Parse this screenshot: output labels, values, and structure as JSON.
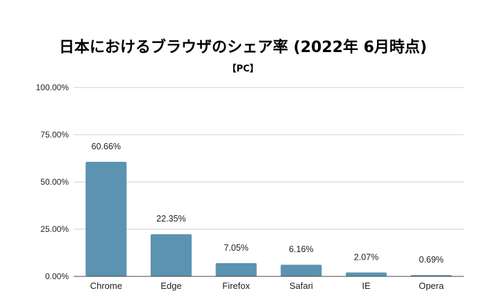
{
  "chart_data": {
    "type": "bar",
    "title": "日本におけるブラウザのシェア率 (2022年 6月時点)",
    "subtitle": "【PC】",
    "categories": [
      "Chrome",
      "Edge",
      "Firefox",
      "Safari",
      "IE",
      "Opera"
    ],
    "values": [
      60.66,
      22.35,
      7.05,
      6.16,
      2.07,
      0.69
    ],
    "data_labels": [
      "60.66%",
      "22.35%",
      "7.05%",
      "6.16%",
      "2.07%",
      "0.69%"
    ],
    "ylim": [
      0,
      100
    ],
    "yticks": [
      0,
      25,
      50,
      75,
      100
    ],
    "ytick_labels": [
      "0.00%",
      "25.00%",
      "50.00%",
      "75.00%",
      "100.00%"
    ],
    "xlabel": "",
    "ylabel": "",
    "grid": true,
    "bar_color": "#5b93b1"
  }
}
